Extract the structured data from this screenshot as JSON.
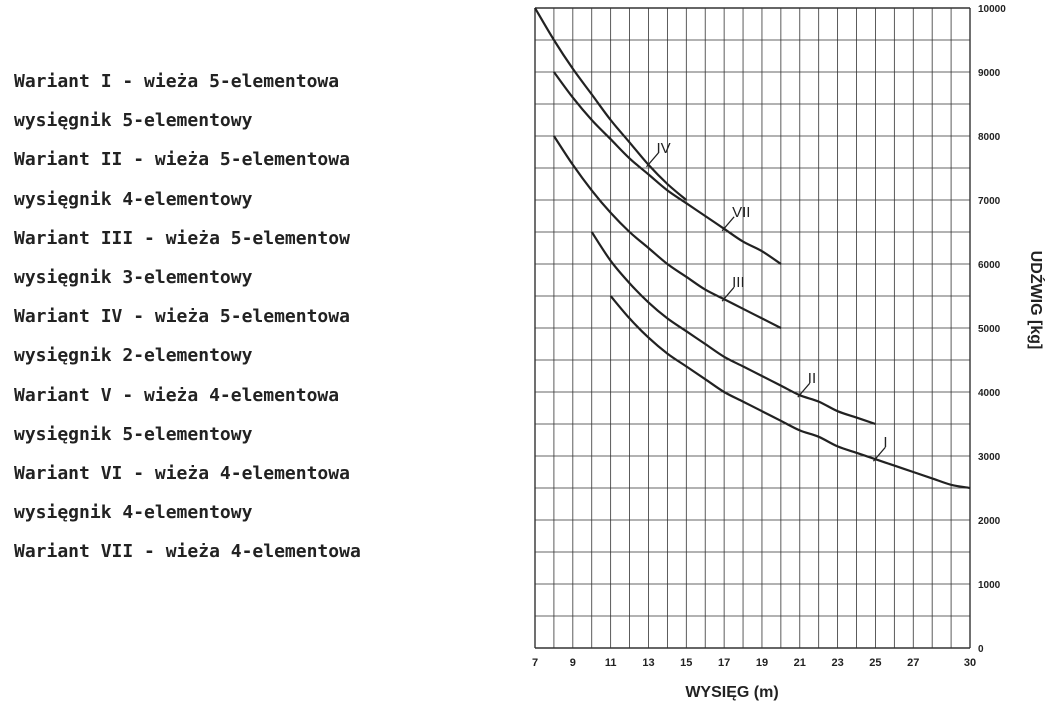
{
  "legend_lines": [
    "Wariant I - wieża 5-elementowa",
    "wysięgnik 5-elementowy",
    "Wariant II - wieża 5-elementowa",
    "wysięgnik 4-elementowy",
    "Wariant III - wieża 5-elementow",
    "wysięgnik 3-elementowy",
    "Wariant IV - wieża 5-elementowa",
    "wysięgnik 2-elementowy",
    "Wariant V - wieża 4-elementowa",
    "wysięgnik 5-elementowy",
    "Wariant VI - wieża 4-elementowa",
    "wysięgnik 4-elementowy",
    "Wariant VII - wieża 4-elementowa"
  ],
  "chart_data": {
    "type": "line",
    "title": "",
    "xlabel": "WYSIĘG (m)",
    "ylabel": "UDŹWIG [kg]",
    "xlim": [
      7,
      30
    ],
    "ylim": [
      0,
      10000
    ],
    "x_ticks": [
      "7",
      "9",
      "11",
      "13",
      "15",
      "17",
      "19",
      "21",
      "23",
      "25",
      "27",
      "30"
    ],
    "y_ticks": [
      "0",
      "1000",
      "2000",
      "3000",
      "4000",
      "5000",
      "6000",
      "7000",
      "8000",
      "9000",
      "10000"
    ],
    "grid": true,
    "series": [
      {
        "name": "IV",
        "x": [
          7,
          8,
          9,
          10,
          11,
          12,
          13,
          14,
          15
        ],
        "y": [
          10000,
          9500,
          9050,
          8650,
          8250,
          7900,
          7550,
          7250,
          7000
        ]
      },
      {
        "name": "VII",
        "x": [
          8,
          9,
          10,
          11,
          12,
          13,
          14,
          15,
          16,
          17,
          18,
          19,
          20
        ],
        "y": [
          9000,
          8600,
          8250,
          7950,
          7650,
          7400,
          7150,
          6950,
          6750,
          6550,
          6350,
          6200,
          6000
        ]
      },
      {
        "name": "III",
        "x": [
          8,
          9,
          10,
          11,
          12,
          13,
          14,
          15,
          16,
          17,
          18,
          19,
          20
        ],
        "y": [
          8000,
          7550,
          7150,
          6800,
          6500,
          6250,
          6000,
          5800,
          5600,
          5450,
          5300,
          5150,
          5000
        ]
      },
      {
        "name": "II",
        "x": [
          10,
          11,
          12,
          13,
          14,
          15,
          16,
          17,
          18,
          19,
          20,
          21,
          22,
          23,
          24,
          25
        ],
        "y": [
          6500,
          6050,
          5700,
          5400,
          5150,
          4950,
          4750,
          4550,
          4400,
          4250,
          4100,
          3950,
          3850,
          3700,
          3600,
          3500
        ]
      },
      {
        "name": "I",
        "x": [
          11,
          12,
          13,
          14,
          15,
          16,
          17,
          18,
          19,
          20,
          21,
          22,
          23,
          24,
          25,
          26,
          27,
          28,
          29,
          30
        ],
        "y": [
          5500,
          5150,
          4850,
          4600,
          4400,
          4200,
          4000,
          3850,
          3700,
          3550,
          3400,
          3300,
          3150,
          3050,
          2950,
          2850,
          2750,
          2650,
          2550,
          2500
        ]
      }
    ],
    "line_color": "#222222",
    "grid_color": "#333333"
  }
}
